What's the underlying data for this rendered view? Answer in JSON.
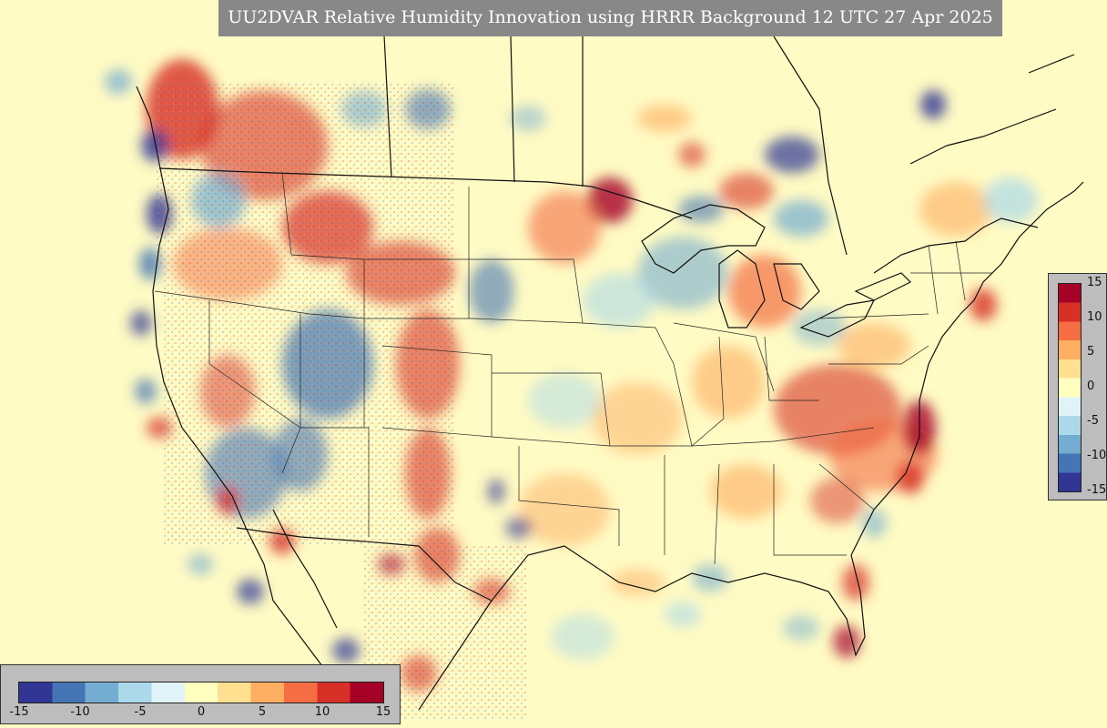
{
  "title": "UU2DVAR Relative Humidity Innovation using HRRR Background 12 UTC 27 Apr 2025",
  "colorbar": {
    "colors": [
      "#313695",
      "#4575b4",
      "#74add1",
      "#abd9e9",
      "#e0f3f8",
      "#ffffbf",
      "#fee090",
      "#fdae61",
      "#f46d43",
      "#d73027",
      "#a50026"
    ],
    "vertical_ticks": [
      "15",
      "10",
      "5",
      "0",
      "-5",
      "-10",
      "-15"
    ],
    "horizontal_ticks": [
      "-15",
      "-10",
      "-5",
      "0",
      "5",
      "10",
      "15"
    ],
    "range": [
      -15,
      15
    ]
  },
  "map": {
    "background_color": "#fffbc4",
    "border_color": "#111111"
  }
}
